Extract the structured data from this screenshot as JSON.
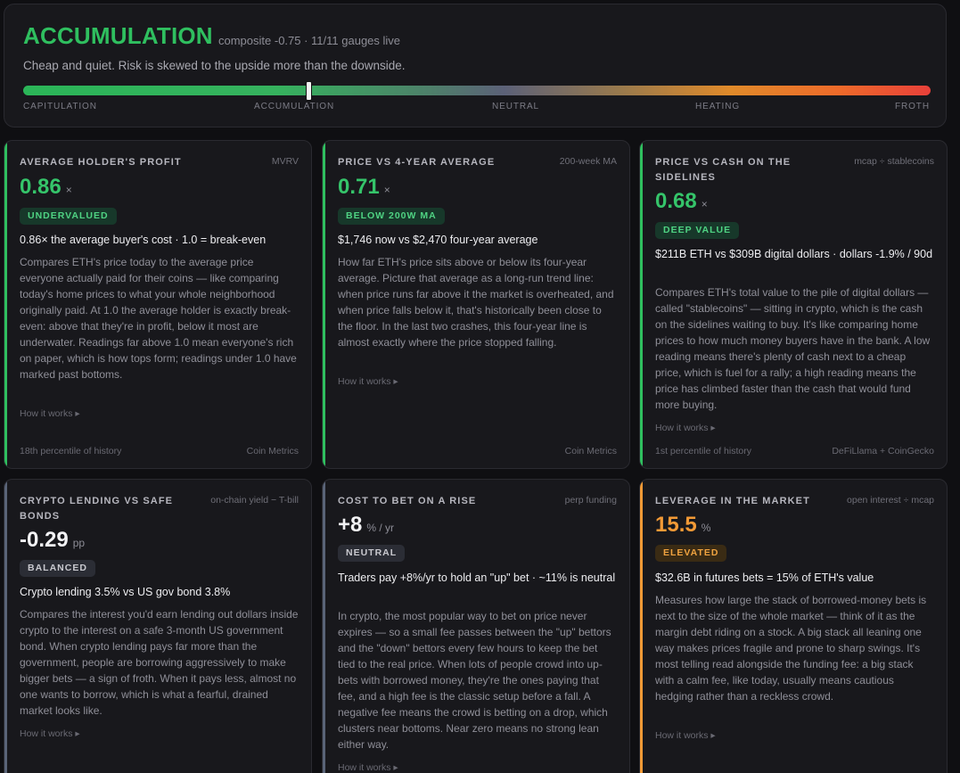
{
  "hero": {
    "title": "ACCUMULATION",
    "meta": "composite -0.75 · 11/11 gauges live",
    "description": "Cheap and quiet. Risk is skewed to the upside more than the downside.",
    "position": 0.315,
    "labels": [
      "CAPITULATION",
      "ACCUMULATION",
      "NEUTRAL",
      "HEATING",
      "FROTH"
    ]
  },
  "cards": [
    {
      "title": "AVERAGE HOLDER'S PROFIT",
      "source": "MVRV",
      "value": "0.86",
      "unit": "×",
      "badge": "UNDERVALUED",
      "headline": "0.86× the average buyer's cost · 1.0 = break-even",
      "body": "Compares ETH's price today to the average price everyone actually paid for their coins — like comparing today's home prices to what your whole neighborhood originally paid. At 1.0 the average holder is exactly break-even: above that they're in profit, below it most are underwater. Readings far above 1.0 mean everyone's rich on paper, which is how tops form; readings under 1.0 have marked past bottoms.",
      "how": "How it works ▸",
      "foot_left": "18th percentile of history",
      "foot_right": "Coin Metrics",
      "accent": "#2fbf5f"
    },
    {
      "title": "PRICE VS 4-YEAR AVERAGE",
      "source": "200-week MA",
      "value": "0.71",
      "unit": "×",
      "badge": "BELOW 200W MA",
      "headline": "$1,746 now vs $2,470 four-year average",
      "body": "How far ETH's price sits above or below its four-year average. Picture that average as a long-run trend line: when price runs far above it the market is overheated, and when price falls below it, that's historically been close to the floor. In the last two crashes, this four-year line is almost exactly where the price stopped falling.",
      "how": "How it works ▸",
      "foot_left": "",
      "foot_right": "Coin Metrics",
      "accent": "#2fbf5f"
    },
    {
      "title": "PRICE VS CASH ON THE SIDELINES",
      "source": "mcap ÷ stablecoins",
      "value": "0.68",
      "unit": "×",
      "badge": "DEEP VALUE",
      "headline": "$211B ETH vs $309B digital dollars · dollars -1.9% / 90d",
      "body": "Compares ETH's total value to the pile of digital dollars — called \"stablecoins\" — sitting in crypto, which is the cash on the sidelines waiting to buy. It's like comparing home prices to how much money buyers have in the bank. A low reading means there's plenty of cash next to a cheap price, which is fuel for a rally; a high reading means the price has climbed faster than the cash that would fund more buying.",
      "how": "How it works ▸",
      "foot_left": "1st percentile of history",
      "foot_right": "DeFiLlama + CoinGecko",
      "accent": "#2fbf5f"
    },
    {
      "title": "CRYPTO LENDING VS SAFE BONDS",
      "source": "on-chain yield − T-bill",
      "value": "-0.29",
      "unit": "pp",
      "badge": "BALANCED",
      "headline": "Crypto lending 3.5% vs US gov bond 3.8%",
      "body": "Compares the interest you'd earn lending out dollars inside crypto to the interest on a safe 3-month US government bond. When crypto lending pays far more than the government, people are borrowing aggressively to make bigger bets — a sign of froth. When it pays less, almost no one wants to borrow, which is what a fearful, drained market looks like.",
      "how": "How it works ▸",
      "accent": "#5a6478"
    },
    {
      "title": "COST TO BET ON A RISE",
      "source": "perp funding",
      "value": "+8",
      "unit": "% / yr",
      "badge": "NEUTRAL",
      "headline": "Traders pay +8%/yr to hold an \"up\" bet · ~11% is neutral",
      "body": "In crypto, the most popular way to bet on price never expires — so a small fee passes between the \"up\" bettors and the \"down\" bettors every few hours to keep the bet tied to the real price. When lots of people crowd into up-bets with borrowed money, they're the ones paying that fee, and a high fee is the classic setup before a fall. A negative fee means the crowd is betting on a drop, which clusters near bottoms. Near zero means no strong lean either way.",
      "how": "How it works ▸",
      "accent": "#5a6478"
    },
    {
      "title": "LEVERAGE IN THE MARKET",
      "source": "open interest ÷ mcap",
      "value": "15.5",
      "unit": "%",
      "badge": "ELEVATED",
      "headline": "$32.6B in futures bets = 15% of ETH's value",
      "body": "Measures how large the stack of borrowed-money bets is next to the size of the whole market — think of it as the margin debt riding on a stock. A big stack all leaning one way makes prices fragile and prone to sharp swings. It's most telling read alongside the funding fee: a big stack with a calm fee, like today, usually means cautious hedging rather than a reckless crowd.",
      "how": "How it works ▸",
      "accent": "#f39a36"
    }
  ]
}
